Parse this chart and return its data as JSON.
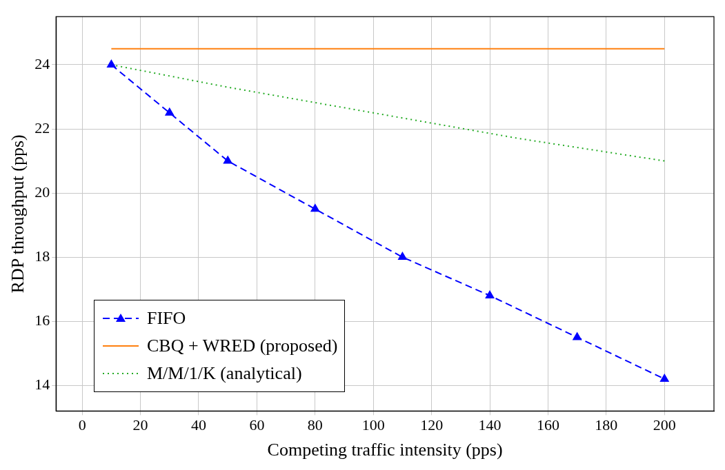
{
  "chart_data": {
    "type": "line",
    "xlabel": "Competing traffic intensity (pps)",
    "ylabel": "RDP throughput (pps)",
    "xlim": [
      -9,
      217
    ],
    "xticks": [
      0,
      20,
      40,
      60,
      80,
      100,
      120,
      140,
      160,
      180,
      200
    ],
    "ylim": [
      13.2,
      25.5
    ],
    "yticks": [
      14,
      16,
      18,
      20,
      22,
      24
    ],
    "grid": true,
    "legend": "bottom left",
    "series": [
      {
        "name": "FIFO",
        "color": "#0000ff",
        "line_style": "dashed",
        "marker": "triangle",
        "x": [
          10,
          30,
          50,
          80,
          110,
          140,
          170,
          200
        ],
        "values": [
          24,
          22.5,
          21,
          19.5,
          18,
          16.8,
          15.5,
          14.2
        ]
      },
      {
        "name": "CBQ + WRED (proposed)",
        "color": "#ff7f0e",
        "line_style": "solid",
        "marker": "none",
        "x": [
          10,
          200
        ],
        "values": [
          24.5,
          24.5
        ]
      },
      {
        "name": "M/M/1/K (analytical)",
        "color": "#22aa22",
        "line_style": "dotted",
        "marker": "none",
        "x": [
          10,
          50,
          100,
          150,
          200
        ],
        "values": [
          24,
          23.3,
          22.5,
          21.7,
          21
        ]
      }
    ]
  }
}
